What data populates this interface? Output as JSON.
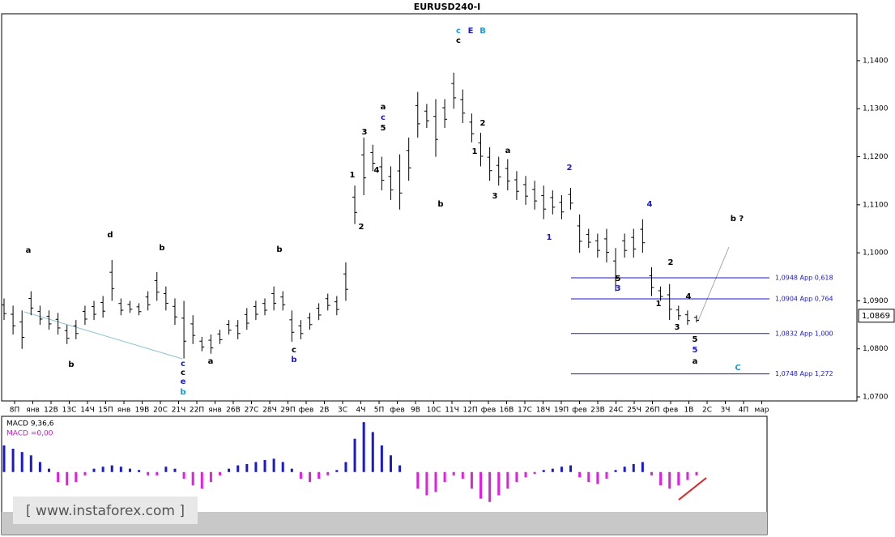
{
  "chart_data": {
    "type": "ohlc",
    "title": "EURUSD240-I",
    "ylim": [
      1.0695,
      1.1496
    ],
    "yticks": [
      {
        "value": 1.07,
        "label": "1,0700"
      },
      {
        "value": 1.08,
        "label": "1,0800"
      },
      {
        "value": 1.09,
        "label": "1,0900"
      },
      {
        "value": 1.1,
        "label": "1,1000"
      },
      {
        "value": 1.11,
        "label": "1,1100"
      },
      {
        "value": 1.12,
        "label": "1,1200"
      },
      {
        "value": 1.13,
        "label": "1,1300"
      },
      {
        "value": 1.14,
        "label": "1,1400"
      }
    ],
    "x_labels": [
      "8П",
      "янв",
      "12В",
      "13С",
      "14Ч",
      "15П",
      "янв",
      "19В",
      "20С",
      "21Ч",
      "22П",
      "янв",
      "26В",
      "27С",
      "28Ч",
      "29П",
      "фев",
      "2В",
      "3С",
      "4Ч",
      "5П",
      "фев",
      "9В",
      "10С",
      "11Ч",
      "12П",
      "фев",
      "16В",
      "17С",
      "18Ч",
      "19П",
      "фев",
      "23В",
      "24С",
      "25Ч",
      "26П",
      "фев",
      "1В",
      "2С",
      "3Ч",
      "4П",
      "мар"
    ],
    "color": "#000000",
    "high": [
      1.0905,
      1.089,
      1.088,
      1.092,
      1.089,
      1.088,
      1.0875,
      1.085,
      1.086,
      1.089,
      1.09,
      1.091,
      1.0985,
      1.0905,
      1.09,
      1.0895,
      1.092,
      1.096,
      1.093,
      1.0905,
      1.09,
      1.087,
      1.0825,
      1.083,
      1.084,
      1.086,
      1.086,
      1.0885,
      1.09,
      1.0905,
      1.093,
      1.092,
      1.088,
      1.086,
      1.0875,
      1.0895,
      1.0915,
      1.091,
      1.098,
      1.114,
      1.124,
      1.1225,
      1.12,
      1.118,
      1.1205,
      1.124,
      1.1335,
      1.131,
      1.132,
      1.132,
      1.1375,
      1.134,
      1.129,
      1.125,
      1.122,
      1.12,
      1.1195,
      1.117,
      1.116,
      1.115,
      1.114,
      1.113,
      1.112,
      1.1135,
      1.108,
      1.105,
      1.104,
      1.105,
      1.101,
      1.104,
      1.105,
      1.107,
      1.097,
      1.093,
      1.0935,
      1.089,
      1.088,
      1.087
    ],
    "low": [
      1.086,
      1.083,
      1.08,
      1.087,
      1.085,
      1.084,
      1.083,
      1.081,
      1.082,
      1.085,
      1.086,
      1.0865,
      1.09,
      1.087,
      1.0875,
      1.087,
      1.088,
      1.09,
      1.088,
      1.085,
      1.078,
      1.081,
      1.0795,
      1.079,
      1.081,
      1.083,
      1.082,
      1.084,
      1.086,
      1.087,
      1.088,
      1.088,
      1.0815,
      1.082,
      1.084,
      1.086,
      1.088,
      1.087,
      1.09,
      1.106,
      1.112,
      1.117,
      1.113,
      1.111,
      1.109,
      1.115,
      1.124,
      1.126,
      1.12,
      1.126,
      1.13,
      1.127,
      1.123,
      1.118,
      1.115,
      1.114,
      1.113,
      1.111,
      1.11,
      1.109,
      1.107,
      1.108,
      1.107,
      1.109,
      1.1,
      1.101,
      1.099,
      1.098,
      1.092,
      1.099,
      1.099,
      1.1,
      1.091,
      1.09,
      1.086,
      1.086,
      1.085,
      1.0855
    ],
    "last_price": {
      "value": 1.0869,
      "label": "1,0869"
    },
    "levels": [
      {
        "value": 1.0948,
        "label": "1,0948 App 0,618"
      },
      {
        "value": 1.0904,
        "label": "1,0904 App 0,764"
      },
      {
        "value": 1.0832,
        "label": "1,0832 App 1,000"
      },
      {
        "value": 1.0748,
        "label": "1,0748 App 1,272"
      }
    ],
    "annotations": [
      {
        "text": "c",
        "color": "#1a9ad6"
      },
      {
        "text": "E",
        "color": "#1a1acc"
      },
      {
        "text": "B",
        "color": "#1a9ad6"
      },
      {
        "text": "c",
        "color": "#000000"
      },
      {
        "text": "d",
        "color": "#000000"
      },
      {
        "text": "b",
        "color": "#000000"
      },
      {
        "text": "b",
        "color": "#000000"
      },
      {
        "text": "a",
        "color": "#000000"
      },
      {
        "text": "a",
        "color": "#000000"
      },
      {
        "text": "b",
        "color": "#000000"
      },
      {
        "text": "b ?",
        "color": "#000000"
      },
      {
        "text": "C",
        "color": "#1a9ad6"
      },
      {
        "text": "a",
        "color": "#000000"
      },
      {
        "text": "5",
        "color": "#1a1acc"
      },
      {
        "text": "5",
        "color": "#000000"
      },
      {
        "text": "3",
        "color": "#000000"
      },
      {
        "text": "1",
        "color": "#000000"
      },
      {
        "text": "2",
        "color": "#000000"
      },
      {
        "text": "4",
        "color": "#000000"
      },
      {
        "text": "4",
        "color": "#1a1acc"
      },
      {
        "text": "3",
        "color": "#1a1acc"
      },
      {
        "text": "5",
        "color": "#000000"
      },
      {
        "text": "2",
        "color": "#1a1acc"
      },
      {
        "text": "1",
        "color": "#1a1acc"
      },
      {
        "text": "c",
        "color": "#1a1acc"
      },
      {
        "text": "c",
        "color": "#000000"
      },
      {
        "text": "e",
        "color": "#1a1acc"
      },
      {
        "text": "b",
        "color": "#1a9ad6"
      },
      {
        "text": "b",
        "color": "#000000"
      },
      {
        "text": "c",
        "color": "#000000"
      },
      {
        "text": "b",
        "color": "#1a1acc"
      },
      {
        "text": "a",
        "color": "#000000"
      },
      {
        "text": "1",
        "color": "#000000"
      },
      {
        "text": "2",
        "color": "#000000"
      },
      {
        "text": "3",
        "color": "#000000"
      },
      {
        "text": "4",
        "color": "#000000"
      },
      {
        "text": "5",
        "color": "#000000"
      },
      {
        "text": "c",
        "color": "#1a1acc"
      },
      {
        "text": "2",
        "color": "#000000"
      },
      {
        "text": "1",
        "color": "#000000"
      },
      {
        "text": "3",
        "color": "#000000"
      },
      {
        "text": "a",
        "color": "#000000"
      }
    ],
    "macd": {
      "title": "MACD 9,36,6",
      "signal_label": "MACD =0,00",
      "ylim": [
        -0.0055,
        0.008
      ],
      "positive_color": "#1a1acc",
      "negative_color": "#e020e0",
      "values": [
        0.004,
        0.0035,
        0.003,
        0.0025,
        0.0015,
        0.0005,
        -0.0015,
        -0.002,
        -0.0015,
        -0.0005,
        0.0005,
        0.0008,
        0.001,
        0.0008,
        0.0005,
        0.0003,
        -0.0005,
        -0.0005,
        0.0008,
        0.0005,
        -0.001,
        -0.002,
        -0.0025,
        -0.0015,
        -0.0005,
        0.0005,
        0.001,
        0.0012,
        0.0015,
        0.0018,
        0.002,
        0.0015,
        0.0005,
        -0.001,
        -0.0015,
        -0.001,
        -0.0005,
        0.0003,
        0.0015,
        0.005,
        0.0075,
        0.006,
        0.004,
        0.0025,
        0.001,
        0.0,
        -0.0025,
        -0.0035,
        -0.003,
        -0.0015,
        -0.0005,
        -0.001,
        -0.0025,
        -0.004,
        -0.0045,
        -0.0035,
        -0.0025,
        -0.0015,
        -0.0008,
        -0.0003,
        0.0003,
        0.0005,
        0.0008,
        0.001,
        -0.0008,
        -0.0015,
        -0.0018,
        -0.001,
        0.0003,
        0.0008,
        0.0012,
        0.0015,
        -0.0005,
        -0.002,
        -0.0025,
        -0.002,
        -0.0012,
        -0.0005
      ]
    },
    "watermark": "[ www.instaforex.com ]"
  }
}
